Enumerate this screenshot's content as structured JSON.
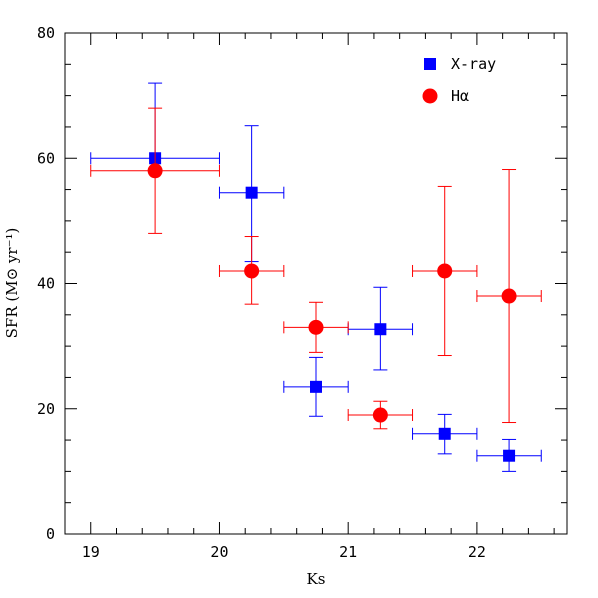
{
  "chart_data": {
    "type": "scatter",
    "title": "",
    "xlabel": "Ks",
    "ylabel": "SFR (M⊙ yr⁻¹)",
    "xlim": [
      18.8,
      22.7
    ],
    "ylim": [
      0,
      80
    ],
    "xticks": [
      19,
      20,
      21,
      22
    ],
    "yticks": [
      0,
      20,
      40,
      60,
      80
    ],
    "xticklabels": [
      "19",
      "20",
      "21",
      "22"
    ],
    "yticklabels": [
      "0",
      "20",
      "40",
      "60",
      "80"
    ],
    "grid": false,
    "legend_position": "top-right",
    "series": [
      {
        "name": "X-ray",
        "color": "#0000ff",
        "marker": "square",
        "points": [
          {
            "x": 19.5,
            "y": 60.0,
            "xerr": 0.5,
            "ylo": 58.0,
            "yhi": 72.0
          },
          {
            "x": 20.25,
            "y": 54.5,
            "xerr": 0.25,
            "ylo": 43.5,
            "yhi": 65.2
          },
          {
            "x": 20.75,
            "y": 23.5,
            "xerr": 0.25,
            "ylo": 18.8,
            "yhi": 28.2
          },
          {
            "x": 21.25,
            "y": 32.7,
            "xerr": 0.25,
            "ylo": 26.2,
            "yhi": 39.4
          },
          {
            "x": 21.75,
            "y": 16.0,
            "xerr": 0.25,
            "ylo": 12.8,
            "yhi": 19.1
          },
          {
            "x": 22.25,
            "y": 12.5,
            "xerr": 0.25,
            "ylo": 10.0,
            "yhi": 15.1
          }
        ]
      },
      {
        "name": "Hα",
        "color": "#ff0000",
        "marker": "circle",
        "points": [
          {
            "x": 19.5,
            "y": 58.0,
            "xerr": 0.5,
            "ylo": 48.0,
            "yhi": 68.0
          },
          {
            "x": 20.25,
            "y": 42.0,
            "xerr": 0.25,
            "ylo": 36.7,
            "yhi": 47.5
          },
          {
            "x": 20.75,
            "y": 33.0,
            "xerr": 0.25,
            "ylo": 29.0,
            "yhi": 37.0
          },
          {
            "x": 21.25,
            "y": 19.0,
            "xerr": 0.25,
            "ylo": 16.8,
            "yhi": 21.2
          },
          {
            "x": 21.75,
            "y": 42.0,
            "xerr": 0.25,
            "ylo": 28.5,
            "yhi": 55.5
          },
          {
            "x": 22.25,
            "y": 38.0,
            "xerr": 0.25,
            "ylo": 17.8,
            "yhi": 58.2
          }
        ]
      }
    ]
  }
}
